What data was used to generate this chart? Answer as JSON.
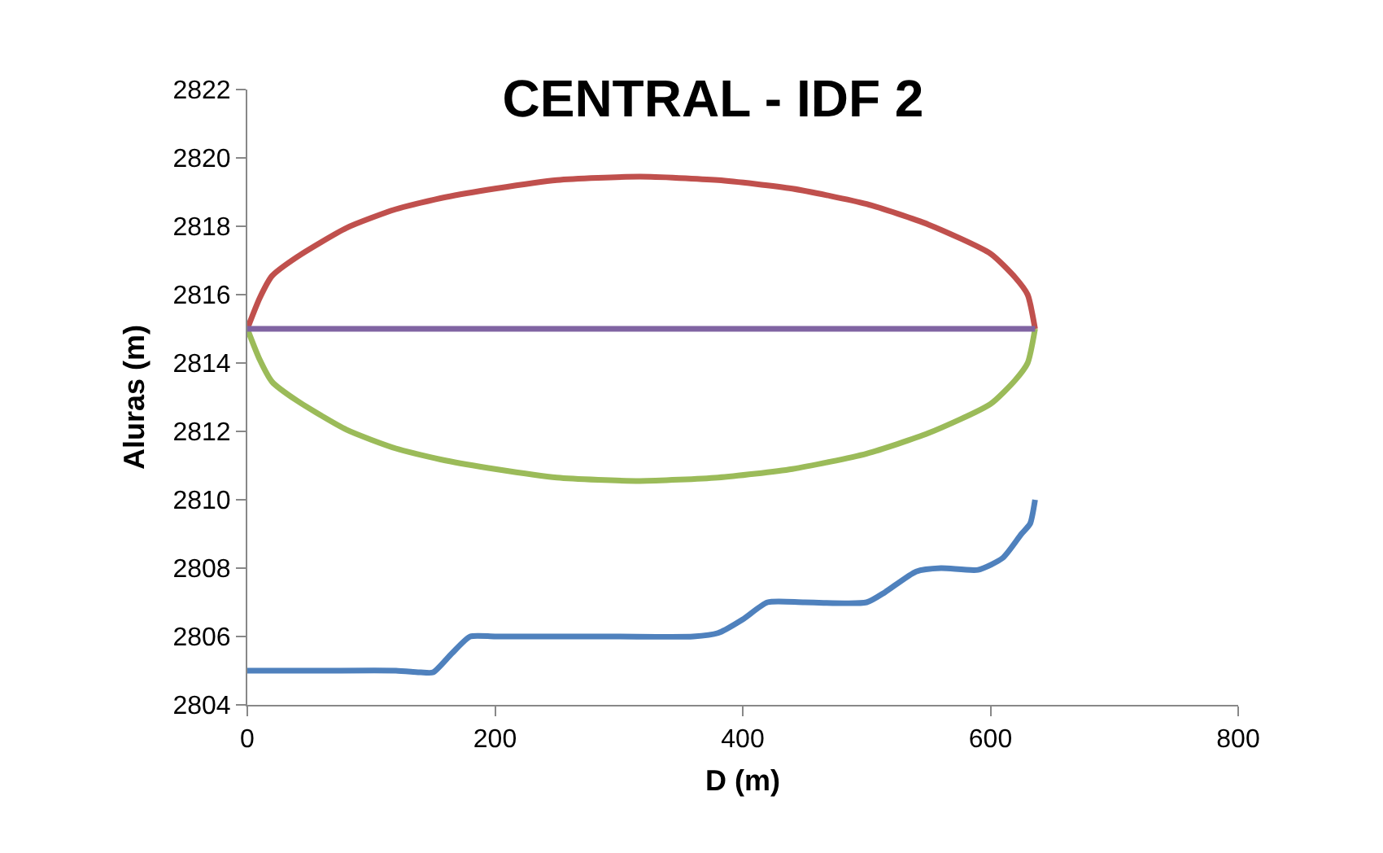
{
  "chart_data": {
    "type": "line",
    "title": "CENTRAL - IDF 2",
    "xlabel": "D (m)",
    "ylabel": "Aluras (m)",
    "xlim": [
      0,
      800
    ],
    "xticks": [
      0,
      200,
      400,
      600,
      800
    ],
    "ylim": [
      2804,
      2822
    ],
    "yticks": [
      2804,
      2806,
      2808,
      2810,
      2812,
      2814,
      2816,
      2818,
      2820,
      2822
    ],
    "grid": false,
    "marker": "none",
    "line_style": "solid",
    "series": [
      {
        "color": "#c0504d",
        "x": [
          0,
          10,
          20,
          40,
          80,
          120,
          160,
          200,
          250,
          317,
          380,
          440,
          500,
          550,
          600,
          620,
          630,
          636
        ],
        "values": [
          2815,
          2815.9,
          2816.55,
          2817.1,
          2817.95,
          2818.5,
          2818.85,
          2819.1,
          2819.35,
          2819.45,
          2819.35,
          2819.1,
          2818.65,
          2818.05,
          2817.2,
          2816.5,
          2816,
          2815
        ]
      },
      {
        "color": "#9bbb59",
        "x": [
          0,
          10,
          20,
          40,
          80,
          120,
          160,
          200,
          250,
          317,
          380,
          440,
          500,
          550,
          600,
          620,
          630,
          636
        ],
        "values": [
          2815,
          2814.1,
          2813.45,
          2812.9,
          2812.05,
          2811.5,
          2811.15,
          2810.9,
          2810.65,
          2810.55,
          2810.65,
          2810.9,
          2811.35,
          2811.95,
          2812.8,
          2813.5,
          2814,
          2815
        ]
      },
      {
        "color": "#8064a2",
        "x": [
          0,
          636
        ],
        "values": [
          2815,
          2815
        ]
      },
      {
        "color": "#4f81bd",
        "x": [
          0,
          60,
          120,
          140,
          150,
          165,
          180,
          200,
          250,
          300,
          360,
          380,
          400,
          420,
          450,
          500,
          515,
          540,
          560,
          590,
          610,
          625,
          632,
          636
        ],
        "values": [
          2805,
          2805,
          2805,
          2804.95,
          2804.95,
          2805.5,
          2806,
          2806,
          2806,
          2806,
          2806,
          2806.1,
          2806.5,
          2807,
          2807,
          2807,
          2807.3,
          2807.9,
          2808,
          2807.95,
          2808.3,
          2809,
          2809.3,
          2810
        ]
      }
    ]
  }
}
